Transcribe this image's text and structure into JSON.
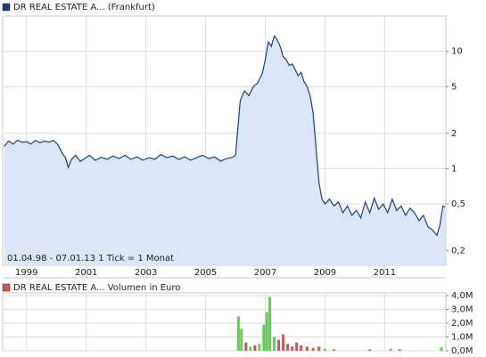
{
  "chart_data": [
    {
      "type": "line",
      "log_scale": true,
      "grid": true,
      "series": [
        {
          "name": "DR REAL ESTATE A... (Frankfurt)",
          "color": "#1f3f7f",
          "x": [
            1998.25,
            1998.4,
            1998.55,
            1998.7,
            1998.85,
            1999.0,
            1999.15,
            1999.3,
            1999.45,
            1999.6,
            1999.75,
            1999.9,
            2000.05,
            2000.2,
            2000.3,
            2000.4,
            2000.5,
            2000.65,
            2000.8,
            2000.95,
            2001.1,
            2001.3,
            2001.5,
            2001.7,
            2001.9,
            2002.1,
            2002.3,
            2002.5,
            2002.7,
            2002.9,
            2003.1,
            2003.3,
            2003.5,
            2003.7,
            2003.9,
            2004.1,
            2004.3,
            2004.5,
            2004.7,
            2004.9,
            2005.1,
            2005.3,
            2005.5,
            2005.7,
            2005.9,
            2006.0,
            2006.08,
            2006.16,
            2006.3,
            2006.45,
            2006.6,
            2006.75,
            2006.9,
            2007.0,
            2007.1,
            2007.2,
            2007.3,
            2007.4,
            2007.5,
            2007.6,
            2007.7,
            2007.8,
            2007.9,
            2008.0,
            2008.1,
            2008.2,
            2008.3,
            2008.4,
            2008.5,
            2008.6,
            2008.7,
            2008.8,
            2008.9,
            2009.0,
            2009.15,
            2009.3,
            2009.45,
            2009.6,
            2009.75,
            2009.9,
            2010.05,
            2010.2,
            2010.35,
            2010.5,
            2010.65,
            2010.8,
            2010.95,
            2011.1,
            2011.25,
            2011.4,
            2011.55,
            2011.7,
            2011.85,
            2012.0,
            2012.15,
            2012.3,
            2012.45,
            2012.6,
            2012.75,
            2012.85,
            2012.95,
            2013.02
          ],
          "values": [
            1.55,
            1.72,
            1.62,
            1.75,
            1.68,
            1.7,
            1.62,
            1.74,
            1.66,
            1.72,
            1.68,
            1.74,
            1.6,
            1.35,
            1.25,
            1.02,
            1.2,
            1.3,
            1.15,
            1.22,
            1.3,
            1.18,
            1.25,
            1.2,
            1.28,
            1.22,
            1.3,
            1.2,
            1.26,
            1.18,
            1.24,
            1.2,
            1.32,
            1.24,
            1.28,
            1.2,
            1.26,
            1.18,
            1.24,
            1.3,
            1.22,
            1.26,
            1.16,
            1.22,
            1.25,
            1.3,
            2.2,
            3.8,
            4.6,
            4.2,
            5.0,
            5.4,
            6.5,
            8.5,
            12.0,
            11.0,
            13.5,
            12.5,
            11.0,
            9.0,
            8.5,
            7.6,
            7.8,
            7.0,
            6.2,
            6.6,
            5.5,
            5.0,
            4.2,
            3.0,
            1.5,
            0.75,
            0.55,
            0.5,
            0.55,
            0.48,
            0.52,
            0.42,
            0.48,
            0.4,
            0.44,
            0.38,
            0.52,
            0.42,
            0.56,
            0.45,
            0.5,
            0.42,
            0.55,
            0.44,
            0.48,
            0.4,
            0.46,
            0.42,
            0.36,
            0.4,
            0.32,
            0.3,
            0.27,
            0.33,
            0.48,
            0.47
          ]
        }
      ],
      "xlim": [
        1998.2,
        2013.05
      ],
      "xticks": [
        1999,
        2001,
        2003,
        2005,
        2007,
        2009,
        2011
      ],
      "ylim": [
        0.15,
        20
      ],
      "yticks": [
        {
          "value": 0.2,
          "label": "0,2"
        },
        {
          "value": 0.5,
          "label": "0,5"
        },
        1,
        2,
        5,
        10
      ],
      "annotation": "01.04.98 - 07.01.13   1 Tick = 1 Monat"
    },
    {
      "type": "bar",
      "grid": true,
      "series": [
        {
          "name": "DR REAL ESTATE A... Volumen in Euro",
          "color": "#cc5555",
          "x": [
            2006.1,
            2006.2,
            2006.35,
            2006.5,
            2006.65,
            2006.8,
            2006.95,
            2007.05,
            2007.15,
            2007.3,
            2007.45,
            2007.6,
            2007.75,
            2007.9,
            2008.05,
            2008.2,
            2008.4,
            2008.6,
            2008.8,
            2009.0,
            2009.3,
            2010.5,
            2011.2,
            2011.5,
            2012.9
          ],
          "values": [
            2500000,
            1600000,
            600000,
            300000,
            400000,
            500000,
            1900000,
            2800000,
            3900000,
            1000000,
            800000,
            1200000,
            500000,
            300000,
            600000,
            400000,
            300000,
            200000,
            300000,
            150000,
            100000,
            100000,
            150000,
            100000,
            250000
          ],
          "colors": [
            "#66cc55",
            "#66cc55",
            "#cc5555",
            "#66cc55",
            "#cc5555",
            "#66cc55",
            "#66cc55",
            "#66cc55",
            "#66cc55",
            "#66cc55",
            "#cc5555",
            "#cc5555",
            "#cc5555",
            "#cc5555",
            "#cc5555",
            "#cc5555",
            "#cc5555",
            "#cc5555",
            "#cc5555",
            "#66cc55",
            "#cc5555",
            "#cc5555",
            "#66cc55",
            "#cc5555",
            "#66cc55"
          ]
        }
      ],
      "xlim": [
        1998.2,
        2013.05
      ],
      "xticks": [
        1999,
        2001,
        2003,
        2005,
        2007,
        2009,
        2011
      ],
      "ylim": [
        0,
        4200000
      ],
      "yticks": [
        {
          "value": 0,
          "label": "0,0M"
        },
        {
          "value": 1000000,
          "label": "1,0M"
        },
        {
          "value": 2000000,
          "label": "2,0M"
        },
        {
          "value": 3000000,
          "label": "3,0M"
        },
        {
          "value": 4000000,
          "label": "4,0M"
        }
      ]
    }
  ]
}
